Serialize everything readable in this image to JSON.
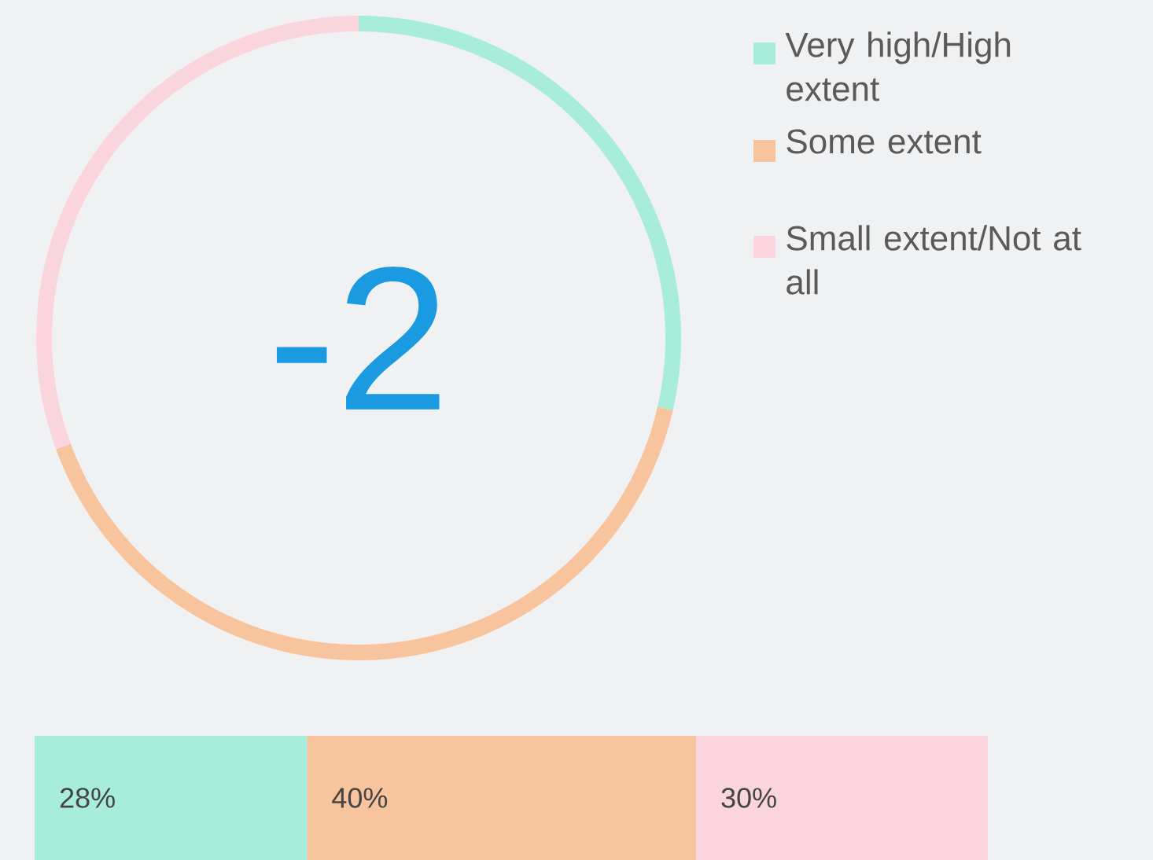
{
  "chart_data": [
    {
      "type": "donut",
      "categories": [
        "Very high/High extent",
        "Some extent",
        "Small extent/Not at all"
      ],
      "values": [
        28.6,
        40.8,
        30.6
      ],
      "colors": [
        "#a8ecdb",
        "#f8c49e",
        "#fad5dd"
      ],
      "legend": "top right",
      "annotations": [
        "-2"
      ]
    },
    {
      "type": "bar",
      "orientation": "horizontal",
      "stacked": true,
      "categories": [
        null
      ],
      "series": [
        {
          "color": "#a8ecdb",
          "values": [
            28
          ],
          "value_labels": [
            "28%"
          ]
        },
        {
          "color": "#f8c49e",
          "values": [
            40
          ],
          "value_labels": [
            "40%"
          ]
        },
        {
          "color": "#fad5dd",
          "values": [
            30
          ],
          "value_labels": [
            "30%"
          ]
        }
      ]
    }
  ]
}
